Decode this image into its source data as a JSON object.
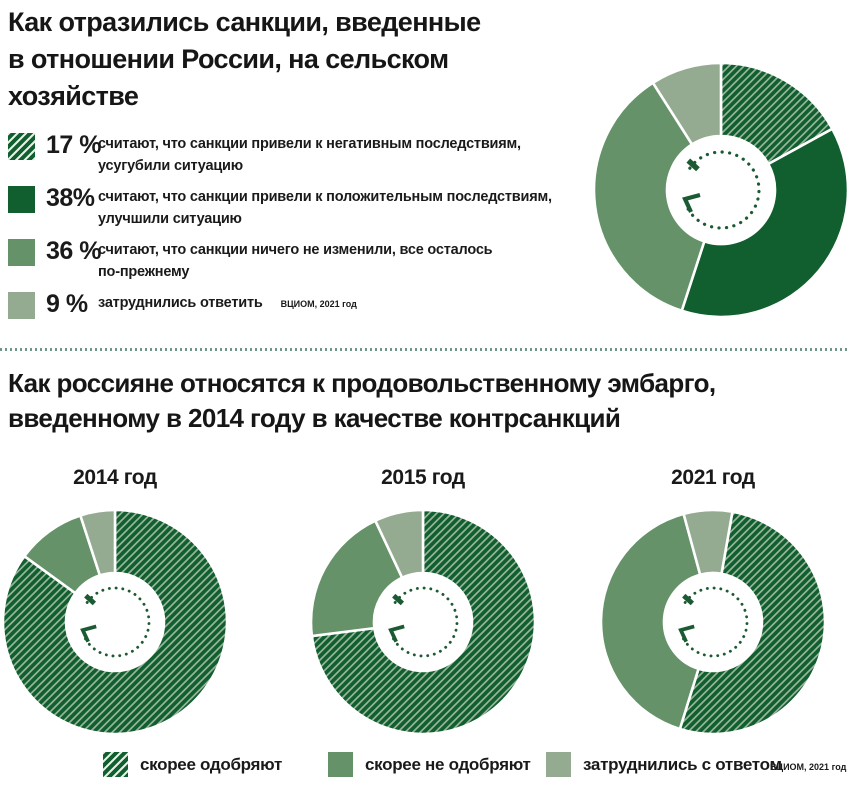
{
  "colors": {
    "dark_green": "#115e2e",
    "medium_green": "#659268",
    "light_green": "#95ab91",
    "hatch_line": "#96b49b",
    "hatch_line_swatch": "#e3efe5",
    "icon_green": "#1c5a33",
    "divider": "#6f9488",
    "text": "#1a1a1a"
  },
  "section1": {
    "title_lines": [
      "Как отразились санкции, введенные",
      "в отношении России, на сельском",
      "хозяйстве"
    ],
    "legend": [
      {
        "pct": "17 %",
        "swatch": "hatch",
        "line1": "считают, что санкции привели к негативным последствиям,",
        "line2": "усугубили ситуацию"
      },
      {
        "pct": "38%",
        "swatch": "dark",
        "line1": "считают, что санкции привели к положительным последствиям,",
        "line2": "улучшили ситуацию"
      },
      {
        "pct": "36 %",
        "swatch": "medium",
        "line1": "считают, что санкции ничего не изменили, все осталось",
        "line2": "по-прежнему"
      },
      {
        "pct": "9 %",
        "swatch": "light",
        "line1": "затруднились ответить"
      }
    ],
    "source": "ВЦИОМ, 2021 год",
    "donut": {
      "values": [
        17,
        38,
        36,
        9
      ],
      "fills": [
        "hatch",
        "dark",
        "medium",
        "light"
      ],
      "rotation": 0
    }
  },
  "section2": {
    "title_lines": [
      "Как россияне относятся к продовольственному эмбарго,",
      "введенному в 2014 году в качестве контрсанкций"
    ],
    "charts": [
      {
        "year": "2014 год",
        "values": [
          85,
          10,
          5
        ],
        "fills": [
          "hatch",
          "medium",
          "light"
        ],
        "rotation": 0
      },
      {
        "year": "2015 год",
        "values": [
          73,
          20,
          7
        ],
        "fills": [
          "hatch",
          "medium",
          "light"
        ],
        "rotation": 0
      },
      {
        "year": "2021 год",
        "values": [
          52,
          41,
          7
        ],
        "fills": [
          "hatch",
          "medium",
          "light"
        ],
        "rotation": 10
      }
    ],
    "legend": [
      {
        "label": "скорее одобряют",
        "swatch": "hatch"
      },
      {
        "label": "скорее не одобряют",
        "swatch": "medium"
      },
      {
        "label": "затруднились с ответом",
        "swatch": "light"
      }
    ],
    "source": "ВЦИОМ, 2021 год"
  },
  "chart_data": [
    {
      "type": "pie",
      "title": "Как отразились санкции, введенные в отношении России, на сельском хозяйстве",
      "labels": [
        "считают, что санкции привели к негативным последствиям, усугубили ситуацию",
        "считают, что санкции привели к положительным последствиям, улучшили ситуацию",
        "считают, что санкции ничего не изменили, все осталось по-прежнему",
        "затруднились ответить"
      ],
      "values": [
        17,
        38,
        36,
        9
      ],
      "legend_position": "left",
      "source": "ВЦИОМ, 2021 год"
    },
    {
      "type": "pie",
      "title": "Как россияне относятся к продовольственному эмбарго, введенному в 2014 году в качестве контрсанкций",
      "categories": [
        "2014 год",
        "2015 год",
        "2021 год"
      ],
      "series": [
        {
          "name": "скорее одобряют",
          "values": [
            85,
            73,
            52
          ]
        },
        {
          "name": "скорее не одобряют",
          "values": [
            10,
            20,
            41
          ]
        },
        {
          "name": "затруднились с ответом",
          "values": [
            5,
            7,
            7
          ]
        }
      ],
      "legend_position": "bottom",
      "source": "ВЦИОМ, 2021 год"
    }
  ]
}
